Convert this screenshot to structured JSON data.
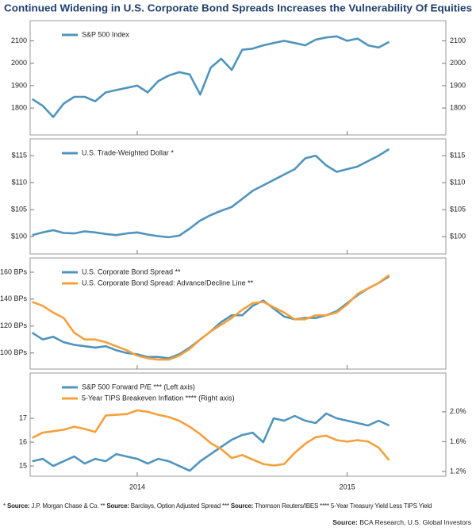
{
  "title": "Continued Widening in U.S. Corporate Bond Spreads Increases the Vulnerability Of Equities",
  "footnote": [
    {
      "prefix": "*",
      "label": "Source:",
      "text": "J.P. Morgan Chase & Co."
    },
    {
      "prefix": "**",
      "label": "Source:",
      "text": "Barclays, Option Adjusted Spread"
    },
    {
      "prefix": "***",
      "label": "Source:",
      "text": "Thomson Reuters/IBES"
    },
    {
      "prefix": "****",
      "text": "5-Year Treasury Yield Less TIPS Yield"
    }
  ],
  "source": {
    "label": "Source:",
    "text": "BCA Research, U.S. Global Investors"
  },
  "chart_data": [
    {
      "type": "line",
      "legend": "upper left",
      "mirror_ticks": true,
      "x": [
        2013.5,
        2013.55,
        2013.6,
        2013.65,
        2013.7,
        2013.75,
        2013.8,
        2013.85,
        2013.9,
        2013.95,
        2014,
        2014.05,
        2014.1,
        2014.15,
        2014.2,
        2014.25,
        2014.3,
        2014.35,
        2014.4,
        2014.45,
        2014.5,
        2014.55,
        2014.6,
        2014.65,
        2014.7,
        2014.75,
        2014.8,
        2014.85,
        2014.9,
        2014.95,
        2015,
        2015.05,
        2015.1,
        2015.15,
        2015.2
      ],
      "xlim": [
        2013.49,
        2015.47
      ],
      "xticks": [
        2014,
        2015
      ],
      "ylim": [
        1680,
        2190
      ],
      "yticks": [
        1800,
        1900,
        2000,
        2100
      ],
      "series": [
        {
          "name": "S&P 500 Index",
          "color": "#4f94bd",
          "values": [
            1840,
            1810,
            1760,
            1820,
            1850,
            1850,
            1830,
            1870,
            1880,
            1890,
            1900,
            1870,
            1920,
            1945,
            1960,
            1950,
            1860,
            1980,
            2020,
            1970,
            2060,
            2065,
            2080,
            2090,
            2100,
            2090,
            2080,
            2105,
            2115,
            2120,
            2100,
            2110,
            2080,
            2070,
            2095
          ]
        }
      ]
    },
    {
      "type": "line",
      "legend": "upper left",
      "mirror_ticks": true,
      "x": [
        2013.5,
        2013.55,
        2013.6,
        2013.65,
        2013.7,
        2013.75,
        2013.8,
        2013.85,
        2013.9,
        2013.95,
        2014,
        2014.05,
        2014.1,
        2014.15,
        2014.2,
        2014.25,
        2014.3,
        2014.35,
        2014.4,
        2014.45,
        2014.5,
        2014.55,
        2014.6,
        2014.65,
        2014.7,
        2014.75,
        2014.8,
        2014.85,
        2014.9,
        2014.95,
        2015,
        2015.05,
        2015.1,
        2015.15,
        2015.2
      ],
      "xlim": [
        2013.49,
        2015.47
      ],
      "xticks": [
        2014,
        2015
      ],
      "ylim": [
        96.8,
        118.1
      ],
      "yticks": [
        {
          "value": 100,
          "label": "$100"
        },
        {
          "value": 105,
          "label": "$105"
        },
        {
          "value": 110,
          "label": "$110"
        },
        {
          "value": 115,
          "label": "$115"
        }
      ],
      "series": [
        {
          "name": "U.S. Trade-Weighted Dollar *",
          "color": "#4f94bd",
          "values": [
            100.3,
            100.8,
            101.2,
            100.7,
            100.6,
            101,
            100.8,
            100.5,
            100.3,
            100.6,
            100.8,
            100.4,
            100.1,
            99.9,
            100.2,
            101.5,
            103,
            104,
            104.8,
            105.5,
            107,
            108.5,
            109.5,
            110.5,
            111.5,
            112.5,
            114.5,
            115,
            113.2,
            112,
            112.5,
            113,
            114,
            115,
            116.2
          ]
        }
      ]
    },
    {
      "type": "line",
      "legend": "upper left",
      "mirror_ticks": false,
      "x": [
        2013.5,
        2013.55,
        2013.6,
        2013.65,
        2013.7,
        2013.75,
        2013.8,
        2013.85,
        2013.9,
        2013.95,
        2014,
        2014.05,
        2014.1,
        2014.15,
        2014.2,
        2014.25,
        2014.3,
        2014.35,
        2014.4,
        2014.45,
        2014.5,
        2014.55,
        2014.6,
        2014.65,
        2014.7,
        2014.75,
        2014.8,
        2014.85,
        2014.9,
        2014.95,
        2015,
        2015.05,
        2015.1,
        2015.15,
        2015.2
      ],
      "xlim": [
        2013.49,
        2015.47
      ],
      "xticks": [
        2014,
        2015
      ],
      "ylim": [
        88,
        170.6
      ],
      "yticks": [
        {
          "value": 100,
          "label": "100 BPs"
        },
        {
          "value": 120,
          "label": "120 BPs"
        },
        {
          "value": 140,
          "label": "140 BPs"
        },
        {
          "value": 160,
          "label": "160 BPs"
        }
      ],
      "series": [
        {
          "name": "U.S. Corporate Bond Spread **",
          "color": "#4f94bd",
          "values": [
            115,
            110,
            112,
            108,
            106,
            105,
            104,
            105,
            102,
            100,
            99,
            97,
            97,
            96,
            99,
            104,
            110,
            116,
            123,
            128,
            128,
            135,
            139,
            133,
            127,
            125,
            126,
            126,
            128,
            131,
            137,
            143,
            148,
            152,
            157
          ]
        },
        {
          "name": "U.S. Corporate Bond Spread: Advance/Decline Line **",
          "color": "#f5a03a",
          "values": [
            138,
            135,
            130,
            126,
            115,
            110,
            110,
            108,
            105,
            102,
            98,
            96,
            95,
            95,
            98,
            103,
            110,
            116,
            121,
            126,
            132,
            137,
            138,
            134,
            130,
            125,
            125,
            128,
            128,
            130,
            136,
            144,
            148,
            152,
            158
          ]
        }
      ]
    },
    {
      "type": "line",
      "legend": "upper left",
      "mirror_ticks": false,
      "x": [
        2013.5,
        2013.55,
        2013.6,
        2013.65,
        2013.7,
        2013.75,
        2013.8,
        2013.85,
        2013.9,
        2013.95,
        2014,
        2014.05,
        2014.1,
        2014.15,
        2014.2,
        2014.25,
        2014.3,
        2014.35,
        2014.4,
        2014.45,
        2014.5,
        2014.55,
        2014.6,
        2014.65,
        2014.7,
        2014.75,
        2014.8,
        2014.85,
        2014.9,
        2014.95,
        2015,
        2015.05,
        2015.1,
        2015.15,
        2015.2
      ],
      "xlim": [
        2013.49,
        2015.47
      ],
      "xticks": [
        {
          "value": 2014,
          "label": "2014"
        },
        {
          "value": 2015,
          "label": "2015"
        }
      ],
      "ylim": [
        14.57,
        18.9
      ],
      "yticks": [
        15,
        16,
        17
      ],
      "y2lim": [
        1.136,
        2.52
      ],
      "y2ticks": [
        {
          "value": 1.2,
          "label": "1.2%"
        },
        {
          "value": 1.6,
          "label": "1.6%"
        },
        {
          "value": 2.0,
          "label": "2.0%"
        }
      ],
      "series": [
        {
          "name": "S&P 500 Forward P/E *** (Left axis)",
          "color": "#4f94bd",
          "values": [
            15.2,
            15.3,
            15.0,
            15.2,
            15.4,
            15.1,
            15.3,
            15.2,
            15.5,
            15.4,
            15.3,
            15.1,
            15.3,
            15.2,
            15.0,
            14.8,
            15.2,
            15.5,
            15.8,
            16.1,
            16.3,
            16.4,
            16.0,
            17.0,
            16.9,
            17.1,
            16.9,
            16.8,
            17.2,
            17.0,
            16.9,
            16.8,
            16.7,
            16.9,
            16.7
          ]
        },
        {
          "name": "5-Year TIPS Breakeven Inflation **** (Right axis)",
          "color": "#f5a03a",
          "axis": "y2",
          "values": [
            1.65,
            1.72,
            1.74,
            1.76,
            1.8,
            1.77,
            1.73,
            1.95,
            1.96,
            1.97,
            2.02,
            2.0,
            1.96,
            1.93,
            1.88,
            1.8,
            1.7,
            1.58,
            1.5,
            1.38,
            1.42,
            1.36,
            1.3,
            1.28,
            1.3,
            1.45,
            1.57,
            1.66,
            1.68,
            1.62,
            1.6,
            1.62,
            1.6,
            1.52,
            1.35
          ]
        }
      ]
    }
  ]
}
